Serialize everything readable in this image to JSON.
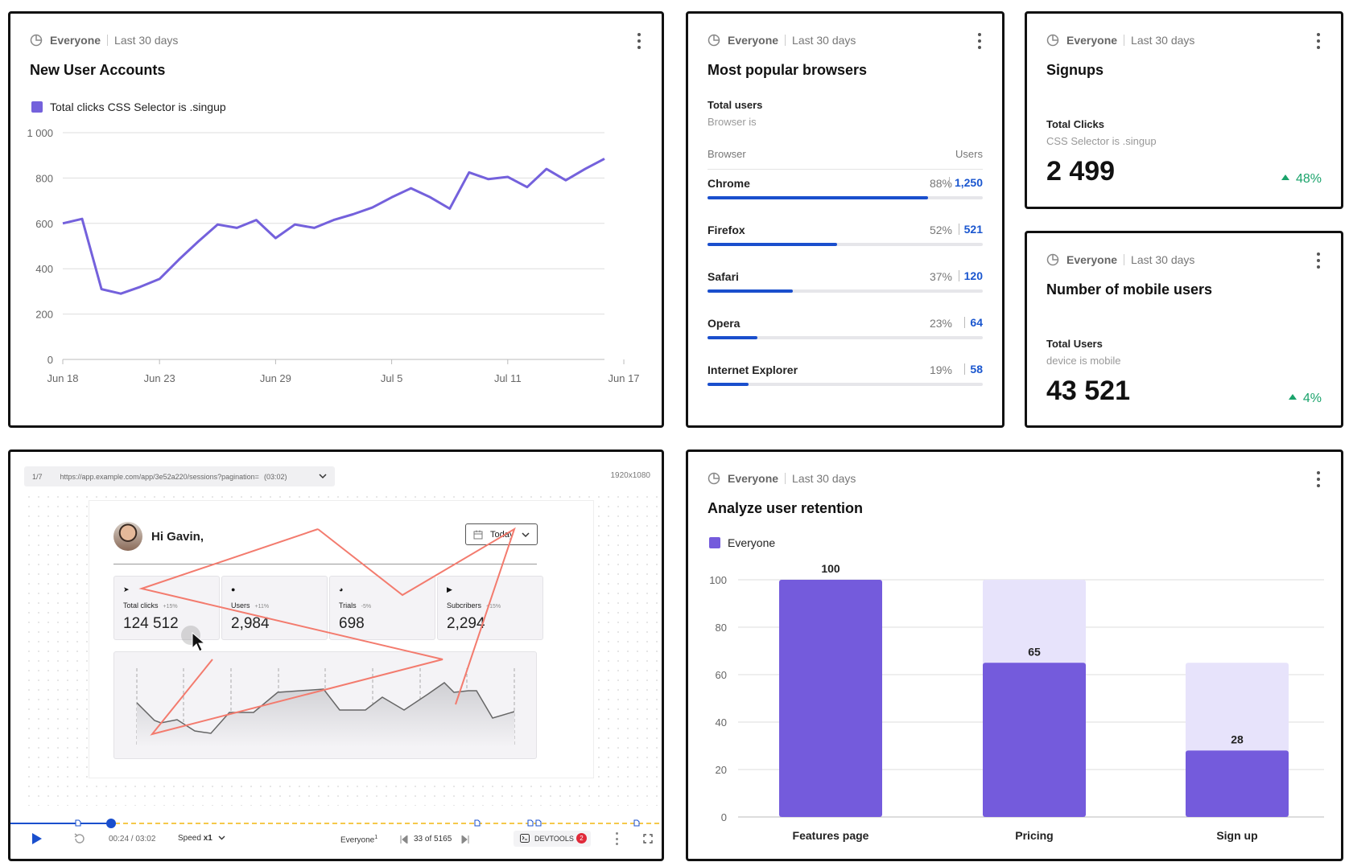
{
  "cards": {
    "new_users": {
      "segment": "Everyone",
      "range": "Last 30 days",
      "title": "New User Accounts",
      "legend": "Total clicks CSS Selector is .singup"
    },
    "browsers": {
      "segment": "Everyone",
      "range": "Last 30 days",
      "title": "Most popular browsers",
      "subtitle": "Total users",
      "filter": "Browser is",
      "col_browser": "Browser",
      "col_users": "Users",
      "rows": [
        {
          "name": "Chrome",
          "pct": "88%",
          "value": "1,250",
          "share": 0.8
        },
        {
          "name": "Firefox",
          "pct": "52%",
          "value": "521",
          "share": 0.47
        },
        {
          "name": "Safari",
          "pct": "37%",
          "value": "120",
          "share": 0.31
        },
        {
          "name": "Opera",
          "pct": "23%",
          "value": "64",
          "share": 0.18
        },
        {
          "name": "Internet Explorer",
          "pct": "19%",
          "value": "58",
          "share": 0.15
        }
      ]
    },
    "signups": {
      "segment": "Everyone",
      "range": "Last 30 days",
      "title": "Signups",
      "label": "Total Clicks",
      "filter": "CSS Selector is .singup",
      "value": "2 499",
      "change": "48%"
    },
    "mobile": {
      "segment": "Everyone",
      "range": "Last 30 days",
      "title": "Number of mobile users",
      "label": "Total Users",
      "filter": "device is mobile",
      "value": "43 521",
      "change": "4%"
    },
    "retention": {
      "segment": "Everyone",
      "range": "Last 30 days",
      "title": "Analyze user retention",
      "legend": "Everyone"
    },
    "replay": {
      "page_index": "1/7",
      "url": "https://app.example.com/app/3e52a220/sessions?pagination=",
      "url_time": "(03:02)",
      "resolution": "1920x1080",
      "greeting": "Hi Gavin,",
      "date_button": "Today",
      "stats": [
        {
          "icon": "cursor-icon",
          "glyph": "➤",
          "label": "Total clicks",
          "delta": "+15%",
          "value": "124 512"
        },
        {
          "icon": "user-icon",
          "glyph": "●",
          "label": "Users",
          "delta": "+11%",
          "value": "2,984"
        },
        {
          "icon": "pie-icon",
          "glyph": "◕",
          "label": "Trials",
          "delta": "-5%",
          "value": "698"
        },
        {
          "icon": "youtube-icon",
          "glyph": "▶",
          "label": "Subcribers",
          "delta": "+15%",
          "value": "2,294"
        }
      ],
      "progress": 0.154,
      "time": "00:24 / 03:02",
      "speed_label": "Speed",
      "speed_value": "x1",
      "segment": "Everyone",
      "segment_sup": "1",
      "session_pos": "33 of 5165",
      "devtools": "DEVTOOLS",
      "devtools_count": "2"
    }
  },
  "chart_data": [
    {
      "type": "line",
      "title": "New User Accounts",
      "xlabel": "",
      "ylabel": "",
      "ylim": [
        0,
        1000
      ],
      "yticks": [
        "0",
        "200",
        "400",
        "600",
        "800",
        "1 000"
      ],
      "xtick_labels": [
        "Jun 18",
        "Jun 23",
        "Jun 29",
        "Jul 5",
        "Jul 11",
        "Jun 17"
      ],
      "xtick_index": [
        0,
        5,
        11,
        17,
        23,
        29
      ],
      "series": [
        {
          "name": "Total clicks CSS Selector is .singup",
          "color": "#7461dc",
          "values": [
            600,
            620,
            310,
            290,
            320,
            355,
            440,
            520,
            595,
            580,
            615,
            535,
            595,
            580,
            615,
            640,
            670,
            715,
            755,
            715,
            665,
            825,
            795,
            805,
            760,
            840,
            790,
            840,
            885
          ]
        }
      ],
      "grid": true,
      "legend_position": "top-left"
    },
    {
      "type": "bar",
      "title": "Analyze user retention",
      "categories": [
        "Features page",
        "Pricing",
        "Sign up"
      ],
      "series": [
        {
          "name": "Everyone",
          "values": [
            100,
            65,
            28
          ],
          "color": "#745bdc"
        },
        {
          "name": "",
          "values": [
            100,
            100,
            65
          ],
          "color": "#e7e3fb"
        }
      ],
      "ylim": [
        0,
        100
      ],
      "yticks": [
        "0",
        "20",
        "40",
        "60",
        "80",
        "100"
      ],
      "grid": true,
      "legend_position": "top-left"
    }
  ]
}
